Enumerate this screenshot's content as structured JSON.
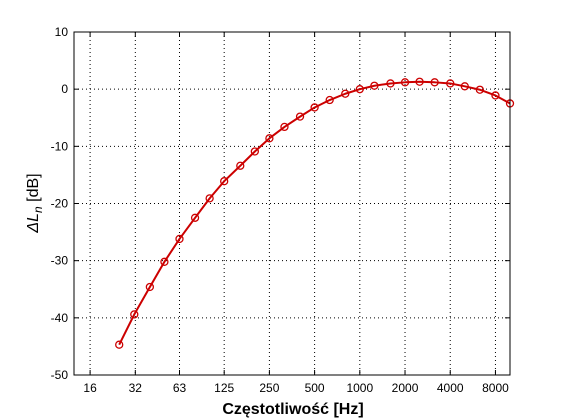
{
  "chart_data": {
    "type": "line",
    "title": "",
    "xlabel": "Częstotliwość [Hz]",
    "ylabel": {
      "prefix": "ΔL",
      "subscript": "n",
      "suffix": " [dB]"
    },
    "x_scale": "log",
    "xlim": [
      12.5,
      10000
    ],
    "ylim": [
      -50,
      10
    ],
    "x_ticks": [
      16,
      32,
      63,
      125,
      250,
      500,
      1000,
      2000,
      4000,
      8000
    ],
    "x_tick_labels": [
      "16",
      "32",
      "63",
      "125",
      "250",
      "500",
      "1000",
      "2000",
      "4000",
      "8000"
    ],
    "y_ticks": [
      10,
      0,
      -10,
      -20,
      -30,
      -40,
      -50
    ],
    "y_tick_labels": [
      "10",
      "0",
      "-10",
      "-20",
      "-30",
      "-40",
      "-50"
    ],
    "grid": true,
    "legend": "none",
    "series": [
      {
        "color": "#cc0000",
        "marker": "circle",
        "x": [
          25,
          31.5,
          40,
          50,
          63,
          80,
          100,
          125,
          160,
          200,
          250,
          315,
          400,
          500,
          630,
          800,
          1000,
          1250,
          1600,
          2000,
          2500,
          3150,
          4000,
          5000,
          6300,
          8000,
          10000
        ],
        "values": [
          -44.7,
          -39.4,
          -34.6,
          -30.2,
          -26.2,
          -22.5,
          -19.1,
          -16.1,
          -13.4,
          -10.9,
          -8.6,
          -6.6,
          -4.8,
          -3.2,
          -1.9,
          -0.8,
          0.0,
          0.6,
          1.0,
          1.2,
          1.3,
          1.2,
          1.0,
          0.5,
          -0.1,
          -1.1,
          -2.5
        ]
      }
    ]
  }
}
